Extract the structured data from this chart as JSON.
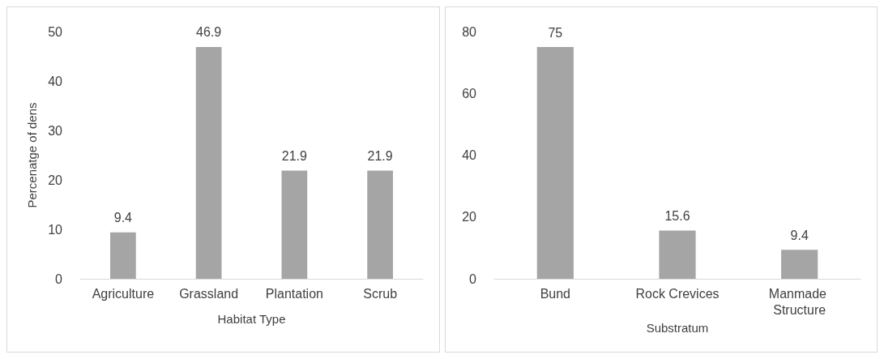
{
  "chart_data": [
    {
      "type": "bar",
      "xlabel": "Habitat Type",
      "ylabel": "Percenatge of dens",
      "categories": [
        "Agriculture",
        "Grassland",
        "Plantation",
        "Scrub"
      ],
      "values": [
        9.4,
        46.9,
        21.9,
        21.9
      ],
      "color": "#a5a5a5",
      "ylim": [
        0,
        50
      ],
      "yticks": [
        0,
        10,
        20,
        30,
        40,
        50
      ],
      "data_labels": true,
      "grid": false
    },
    {
      "type": "bar",
      "xlabel": "Substratum",
      "categories": [
        "Bund",
        "Rock Crevices",
        "Manmade Structure"
      ],
      "values": [
        75,
        15.6,
        9.4
      ],
      "color": "#a5a5a5",
      "ylim": [
        0,
        80
      ],
      "yticks": [
        0,
        20,
        40,
        60,
        80
      ],
      "data_labels": true,
      "grid": false
    }
  ]
}
